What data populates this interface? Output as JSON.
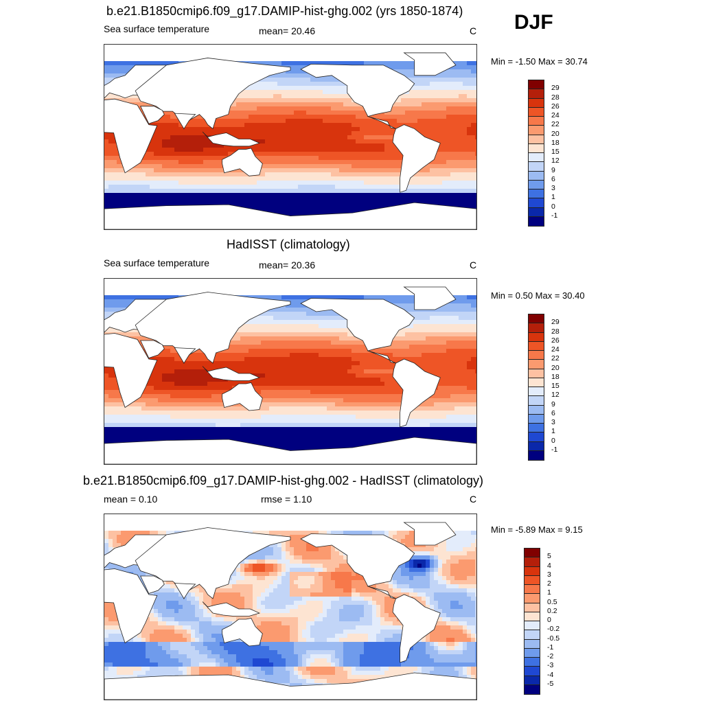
{
  "season": "DJF",
  "panels": [
    {
      "title": "b.e21.B1850cmip6.f09_g17.DAMIP-hist-ghg.002 (yrs 1850-1874)",
      "left_label": "Sea surface temperature",
      "center_label": "mean=  20.46",
      "unit": "C",
      "minmax": "Min =  -1.50 Max =  30.74",
      "levels": [
        "29",
        "28",
        "26",
        "24",
        "22",
        "20",
        "18",
        "15",
        "12",
        "9",
        "6",
        "3",
        "1",
        "0",
        "-1"
      ],
      "colors": [
        "#800000",
        "#b41f0a",
        "#d8340d",
        "#ee5526",
        "#f7784a",
        "#fb9a6f",
        "#fdc1a2",
        "#fde4d2",
        "#e3ecfb",
        "#c2d5f7",
        "#9cbbf2",
        "#6f9bec",
        "#3e71e2",
        "#1f48d2",
        "#0a28aa",
        "#00007f"
      ],
      "field": "sst"
    },
    {
      "title": "HadISST (climatology)",
      "left_label": "Sea surface temperature",
      "center_label": "mean=  20.36",
      "unit": "C",
      "minmax": "Min =   0.50 Max =  30.40",
      "levels": [
        "29",
        "28",
        "26",
        "24",
        "22",
        "20",
        "18",
        "15",
        "12",
        "9",
        "6",
        "3",
        "1",
        "0",
        "-1"
      ],
      "colors": [
        "#800000",
        "#b41f0a",
        "#d8340d",
        "#ee5526",
        "#f7784a",
        "#fb9a6f",
        "#fdc1a2",
        "#fde4d2",
        "#e3ecfb",
        "#c2d5f7",
        "#9cbbf2",
        "#6f9bec",
        "#3e71e2",
        "#1f48d2",
        "#0a28aa",
        "#00007f"
      ],
      "field": "sst"
    },
    {
      "title": "b.e21.B1850cmip6.f09_g17.DAMIP-hist-ghg.002 - HadISST (climatology)",
      "left_label": "mean =   0.10",
      "center_label": "rmse =   1.10",
      "unit": "C",
      "minmax": "Min =  -5.89 Max =   9.15",
      "levels": [
        "5",
        "4",
        "3",
        "2",
        "1",
        "0.5",
        "0.2",
        "0",
        "-0.2",
        "-0.5",
        "-1",
        "-2",
        "-3",
        "-4",
        "-5"
      ],
      "colors": [
        "#800000",
        "#b41f0a",
        "#d8340d",
        "#ee5526",
        "#f7784a",
        "#fb9a6f",
        "#fdc1a2",
        "#fde4d2",
        "#e3ecfb",
        "#c2d5f7",
        "#9cbbf2",
        "#6f9bec",
        "#3e71e2",
        "#1f48d2",
        "#0a28aa",
        "#00007f"
      ],
      "field": "diff"
    }
  ]
}
